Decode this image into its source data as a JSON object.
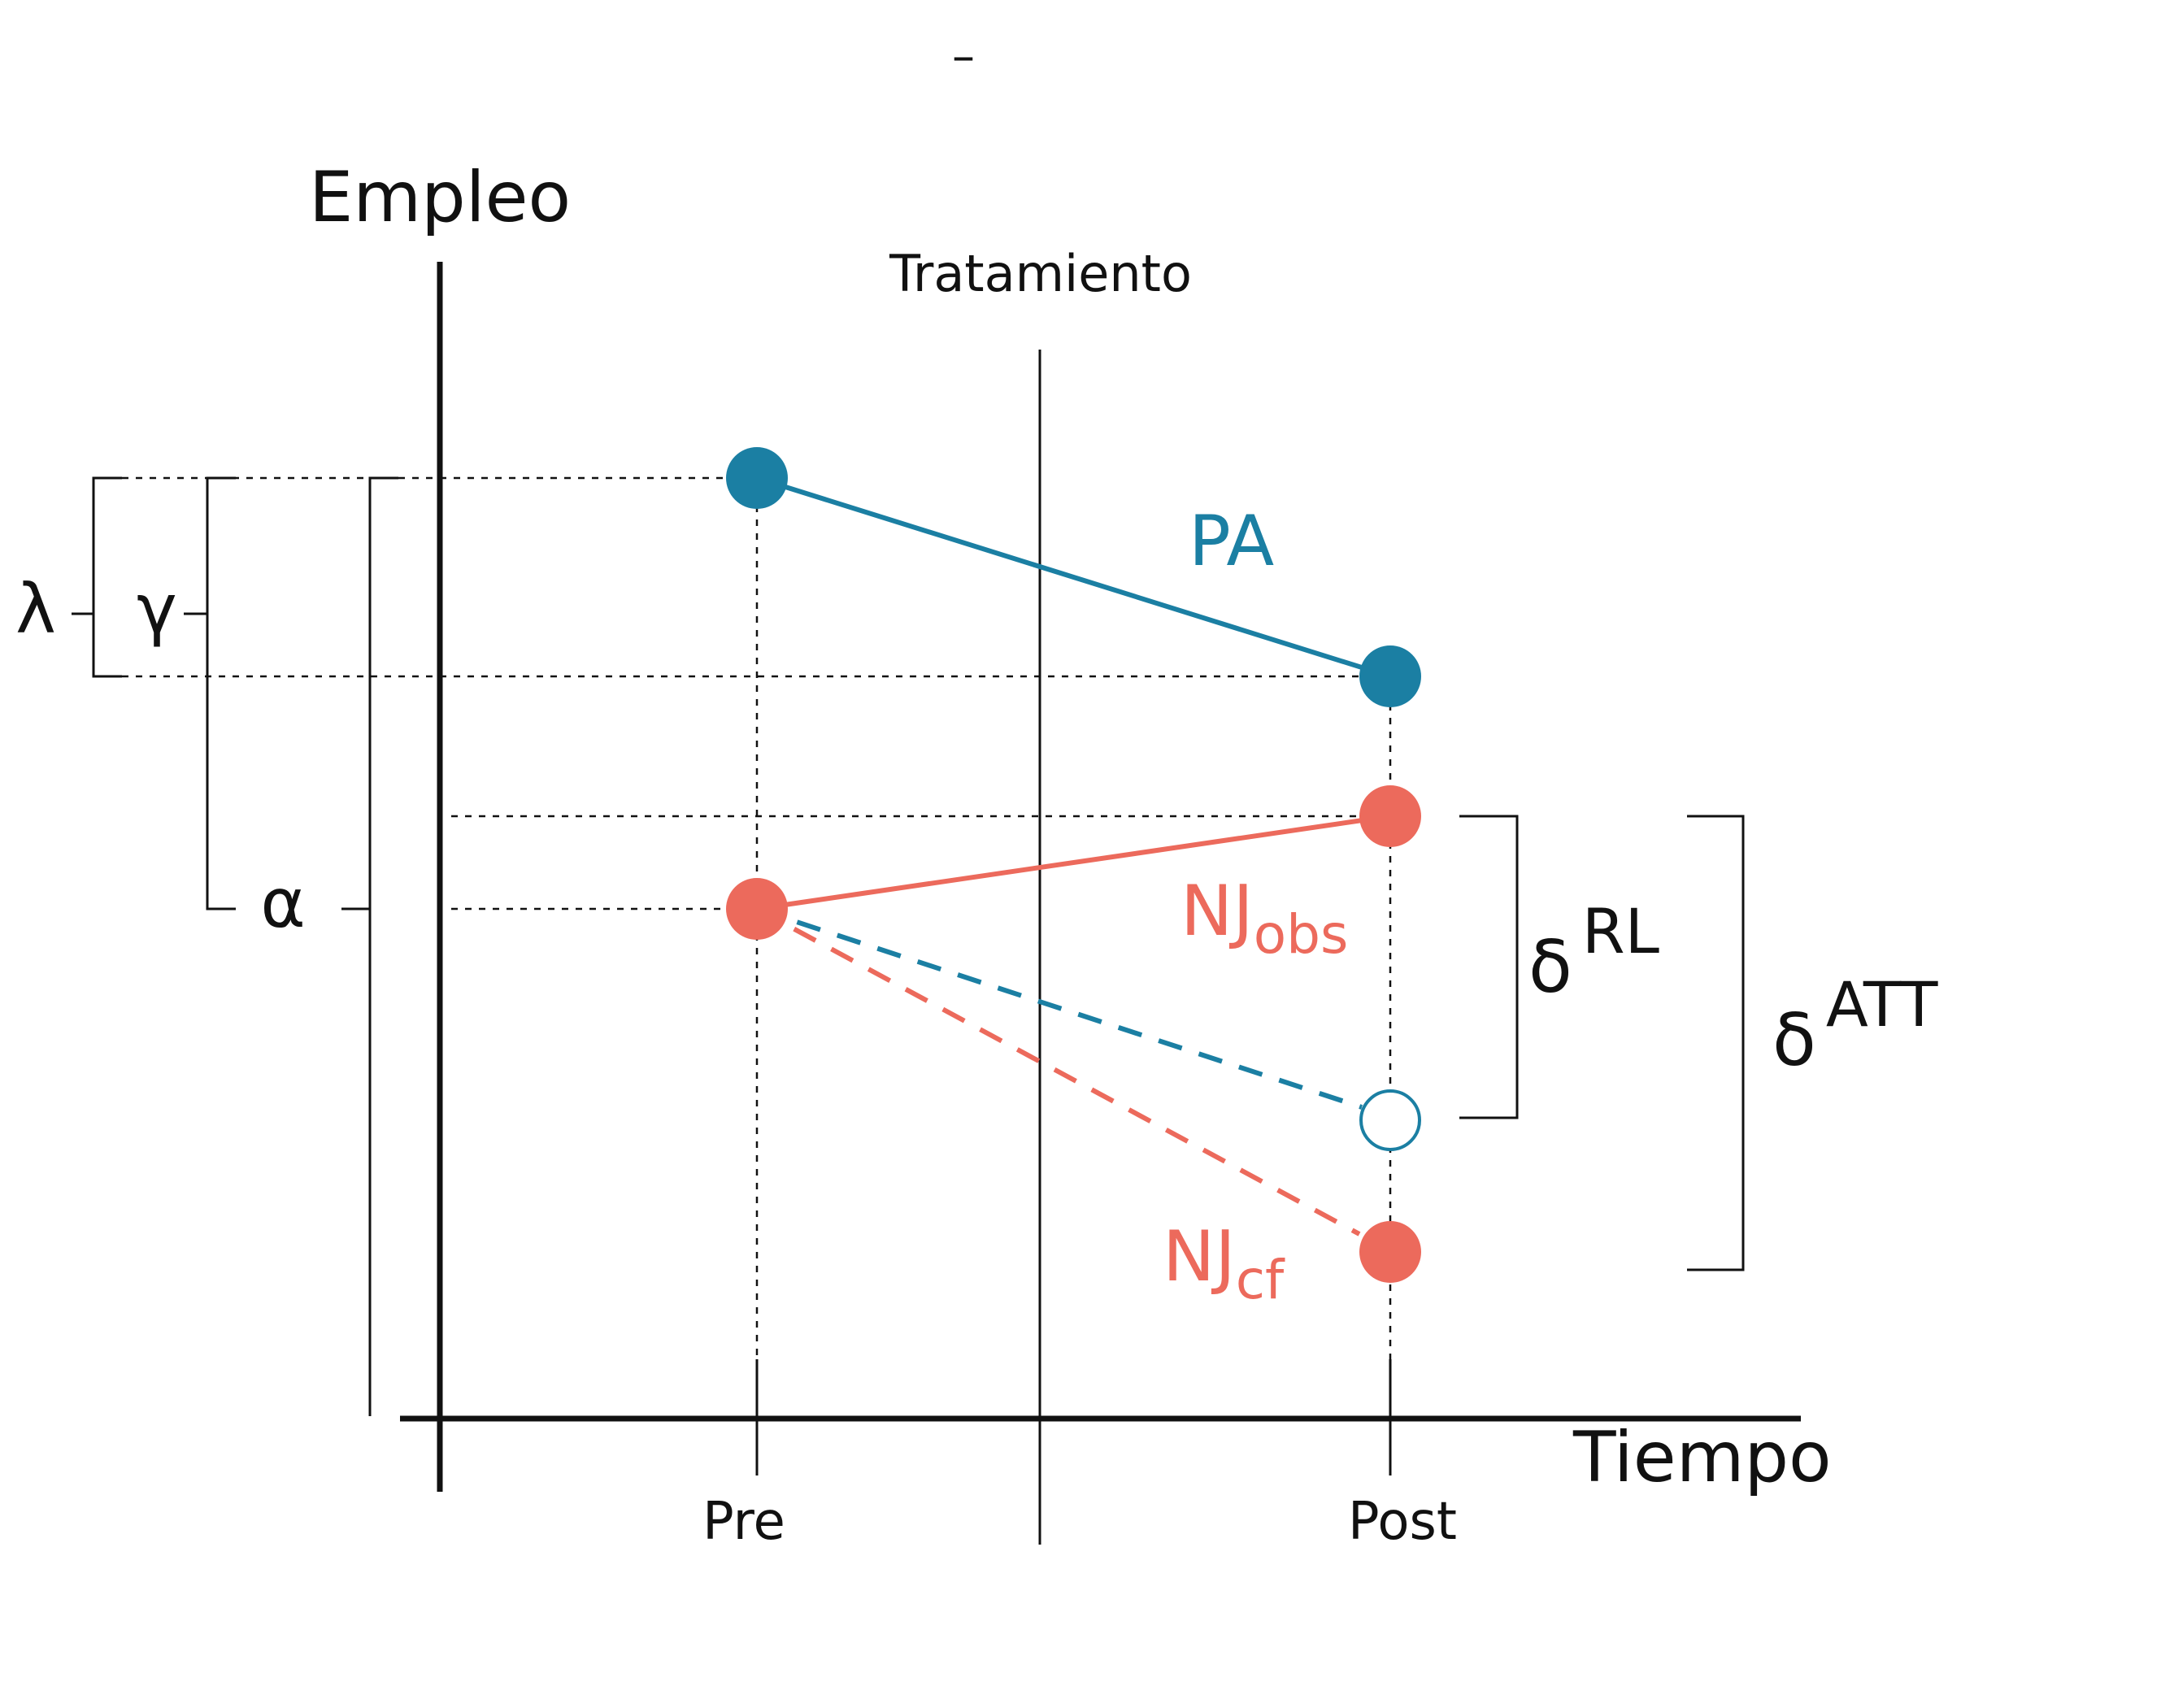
{
  "top_mark": "–",
  "axes": {
    "y_label": "Empleo",
    "x_label": "Tiempo",
    "x_ticks": [
      "Pre",
      "Post"
    ]
  },
  "treatment_label": "Tratamiento",
  "series": {
    "pa": {
      "label": "PA"
    },
    "nj_obs": {
      "label_main": "NJ",
      "label_sub": "obs"
    },
    "nj_cf": {
      "label_main": "NJ",
      "label_sub": "cf"
    }
  },
  "brackets": {
    "lambda": "λ",
    "gamma": "γ",
    "alpha": "α",
    "delta_rl": {
      "main": "δ",
      "sup": "RL"
    },
    "delta_att": {
      "main": "δ",
      "sup": "ATT"
    }
  },
  "colors": {
    "blue": "#1b7fa3",
    "coral": "#ec6a5c",
    "black": "#111111"
  }
}
